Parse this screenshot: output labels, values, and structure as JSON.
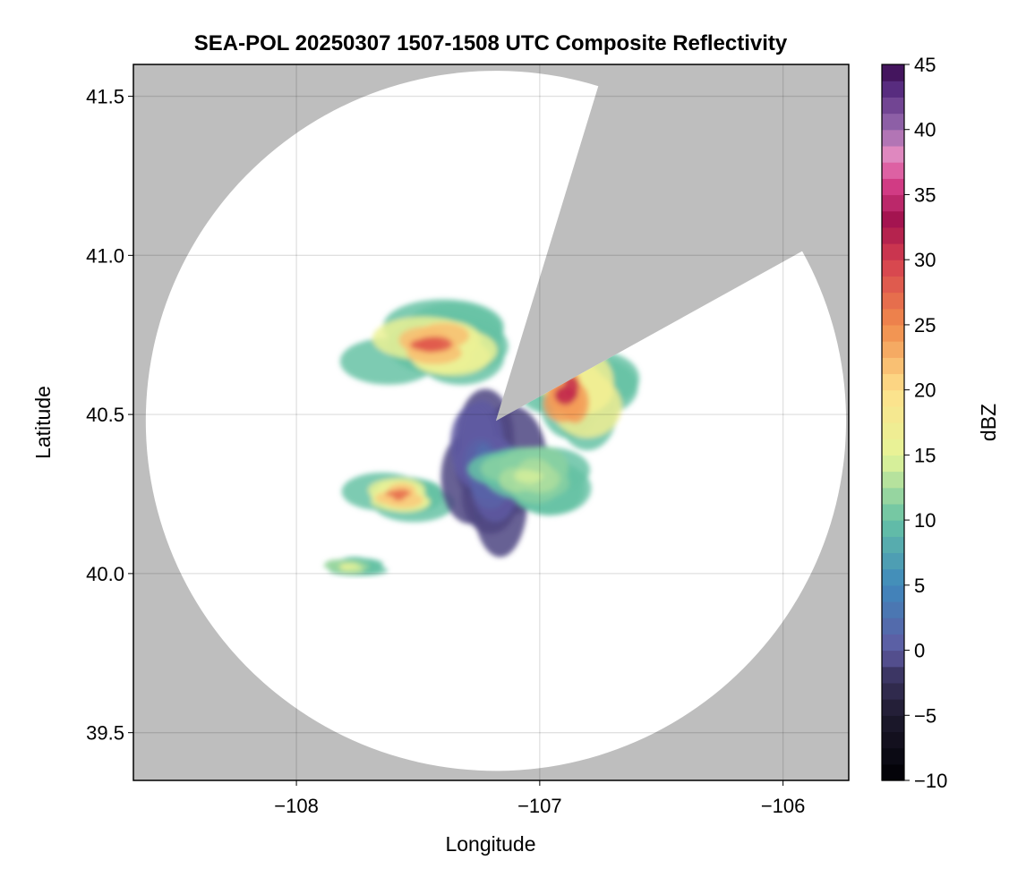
{
  "chart_data": {
    "type": "heatmap",
    "title": "SEA-POL 20250307 1507-1508 UTC Composite Reflectivity",
    "xlabel": "Longitude",
    "ylabel": "Latitude",
    "xlim": [
      -108.67,
      -105.73
    ],
    "ylim": [
      39.35,
      41.6
    ],
    "xticks": [
      -108,
      -107,
      -106
    ],
    "xtick_labels": [
      "−108",
      "−107",
      "−106"
    ],
    "yticks": [
      39.5,
      40.0,
      40.5,
      41.0,
      41.5
    ],
    "ytick_labels": [
      "39.5",
      "40.0",
      "40.5",
      "41.0",
      "41.5"
    ],
    "grid": true,
    "background_color": "#bebebe",
    "coverage_color": "#ffffff",
    "radar": {
      "center_lon": -107.18,
      "center_lat": 40.48,
      "max_range_deg_lat": 1.1,
      "blocked_sectors": [
        {
          "from_azimuth_deg": 17,
          "to_azimuth_deg": 61
        }
      ]
    },
    "colorbar": {
      "label": "dBZ",
      "range": [
        -10,
        45
      ],
      "step": 1.25,
      "ticks": [
        -10,
        -5,
        0,
        5,
        10,
        15,
        20,
        25,
        30,
        35,
        40,
        45
      ],
      "tick_labels": [
        "−10",
        "−5",
        "0",
        "5",
        "10",
        "15",
        "20",
        "25",
        "30",
        "35",
        "40",
        "45"
      ],
      "colormap": "reverse spectral",
      "colors": [
        {
          "value": -10,
          "color": "#000004"
        },
        {
          "value": -5,
          "color": "#1e1a2e"
        },
        {
          "value": -2,
          "color": "#3a3460"
        },
        {
          "value": 0,
          "color": "#5f5aa2"
        },
        {
          "value": 5,
          "color": "#3f88bc"
        },
        {
          "value": 10,
          "color": "#66c2a5"
        },
        {
          "value": 15,
          "color": "#e6f598"
        },
        {
          "value": 20,
          "color": "#fee08b"
        },
        {
          "value": 25,
          "color": "#f08a4b"
        },
        {
          "value": 30,
          "color": "#d53e4f"
        },
        {
          "value": 33,
          "color": "#a2124d"
        },
        {
          "value": 36,
          "color": "#d8418c"
        },
        {
          "value": 38,
          "color": "#e38ac0"
        },
        {
          "value": 40,
          "color": "#9b6cb0"
        },
        {
          "value": 43,
          "color": "#5a2e82"
        },
        {
          "value": 45,
          "color": "#3a0a4e"
        }
      ]
    },
    "echo_regions": [
      {
        "name": "northwest band",
        "lon": [
          -107.82,
          -107.1
        ],
        "lat": [
          40.58,
          40.86
        ],
        "peak_dbz": 28
      },
      {
        "name": "east cell",
        "lon": [
          -107.12,
          -106.62
        ],
        "lat": [
          40.4,
          40.74
        ],
        "peak_dbz": 31
      },
      {
        "name": "southwest band",
        "lon": [
          -107.8,
          -107.38
        ],
        "lat": [
          40.17,
          40.32
        ],
        "peak_dbz": 27
      },
      {
        "name": "central weak echo",
        "lon": [
          -107.45,
          -107.0
        ],
        "lat": [
          40.1,
          40.58
        ],
        "peak_dbz": 2
      },
      {
        "name": "south lobe",
        "lon": [
          -107.3,
          -106.8
        ],
        "lat": [
          40.18,
          40.42
        ],
        "peak_dbz": 14
      },
      {
        "name": "isolated cells southwest",
        "lon": [
          -107.93,
          -107.65
        ],
        "lat": [
          39.99,
          40.05
        ],
        "peak_dbz": 16
      }
    ]
  }
}
